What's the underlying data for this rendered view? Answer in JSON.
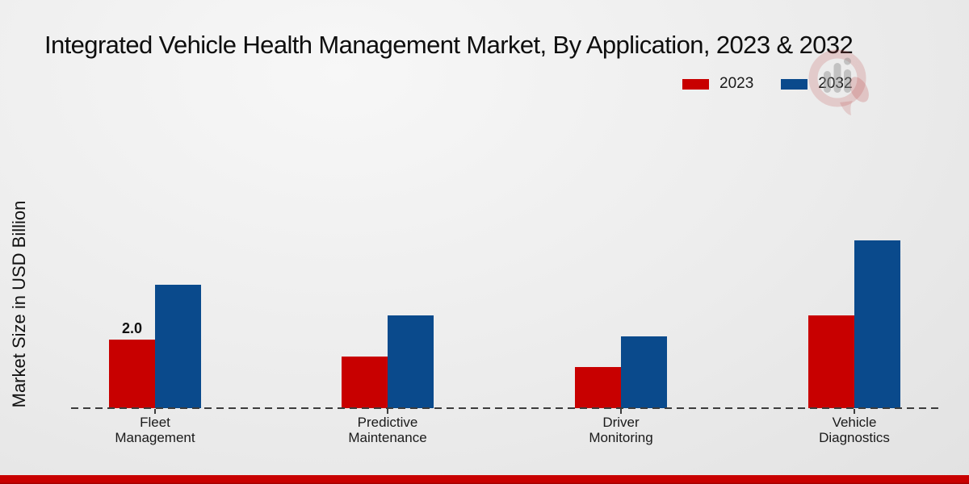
{
  "title": "Integrated Vehicle Health Management Market, By Application, 2023 & 2032",
  "y_axis_label": "Market Size in USD Billion",
  "legend": {
    "position": "top-right",
    "items": [
      {
        "label": "2023",
        "color": "#c80000"
      },
      {
        "label": "2032",
        "color": "#0a4a8c"
      }
    ]
  },
  "watermark": {
    "name": "market-research-future-logo"
  },
  "footer": {
    "color": "#c80000"
  },
  "chart_data": {
    "type": "bar",
    "title": "Integrated Vehicle Health Management Market, By Application, 2023 & 2032",
    "categories": [
      "Fleet Management",
      "Predictive Maintenance",
      "Driver Monitoring",
      "Vehicle Diagnostics"
    ],
    "series": [
      {
        "name": "2023",
        "color": "#c80000",
        "values": [
          2.0,
          1.5,
          1.2,
          2.7
        ]
      },
      {
        "name": "2032",
        "color": "#0a4a8c",
        "values": [
          3.6,
          2.7,
          2.1,
          4.9
        ]
      }
    ],
    "bar_labels": [
      {
        "series": "2023",
        "category_index": 0,
        "text": "2.0"
      }
    ],
    "xlabel": "",
    "ylabel": "Market Size in USD Billion",
    "ylim": [
      0,
      5.5
    ],
    "grid": false,
    "baseline_style": "dashed",
    "legend_position": "top-right"
  }
}
